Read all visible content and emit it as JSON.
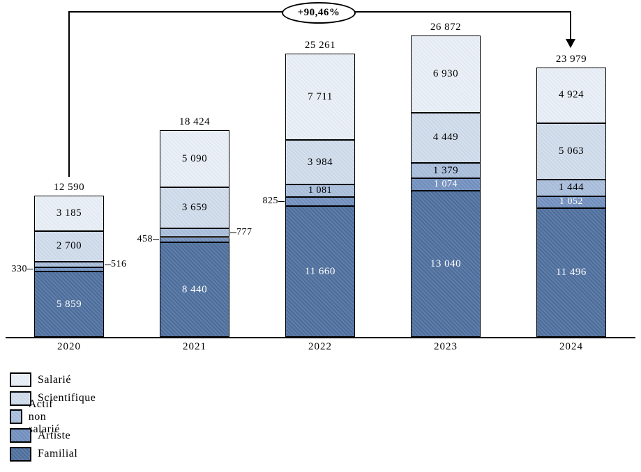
{
  "chart_data": {
    "type": "bar",
    "variant": "stacked-vertical",
    "title": "",
    "xlabel": "",
    "ylabel": "",
    "grid": false,
    "legend_position": "bottom-left",
    "annotation": "+90,46%",
    "annotation_meaning": "growth from 2020 total to 2024 total",
    "categories": [
      "2020",
      "2021",
      "2022",
      "2023",
      "2024"
    ],
    "totals": [
      12590,
      18424,
      25261,
      26872,
      23979
    ],
    "total_labels": [
      "12 590",
      "18 424",
      "25 261",
      "26 872",
      "23 979"
    ],
    "series": [
      {
        "name": "Familial",
        "color": "#4e6f9e",
        "text_color": "#ffffff",
        "values": [
          5859,
          8440,
          11660,
          13040,
          11496
        ],
        "labels": [
          "5 859",
          "8 440",
          "11 660",
          "13 040",
          "11 496"
        ],
        "outside_labels": []
      },
      {
        "name": "Artiste",
        "color": "#7290bf",
        "text_color": "#ffffff",
        "values": [
          330,
          458,
          825,
          1074,
          1052
        ],
        "labels": [
          "330",
          "458",
          "825",
          "1 074",
          "1 052"
        ],
        "outside_labels": [
          {
            "index": 0,
            "side": "left"
          },
          {
            "index": 1,
            "side": "left"
          },
          {
            "index": 2,
            "side": "left"
          }
        ]
      },
      {
        "name": "Actif non salarié",
        "color": "#a9bedc",
        "text_color": "#000000",
        "values": [
          516,
          777,
          1081,
          1379,
          1444
        ],
        "labels": [
          "516",
          "777",
          "1 081",
          "1 379",
          "1 444"
        ],
        "outside_labels": [
          {
            "index": 0,
            "side": "right"
          },
          {
            "index": 1,
            "side": "right"
          }
        ]
      },
      {
        "name": "Scientifique",
        "color": "#d0dcec",
        "text_color": "#000000",
        "values": [
          2700,
          3659,
          3984,
          4449,
          5063
        ],
        "labels": [
          "2 700",
          "3 659",
          "3 984",
          "4 449",
          "5 063"
        ],
        "outside_labels": []
      },
      {
        "name": "Salarié",
        "color": "#e9eff7",
        "text_color": "#000000",
        "values": [
          3185,
          5090,
          7711,
          6930,
          4924
        ],
        "labels": [
          "3 185",
          "5 090",
          "7 711",
          "6 930",
          "4 924"
        ],
        "outside_labels": []
      }
    ],
    "legend": [
      {
        "label": "Salarié",
        "color": "#e9eff7"
      },
      {
        "label": "Scientifique",
        "color": "#d0dcec"
      },
      {
        "label": "Actif non salarié",
        "color": "#a9bedc"
      },
      {
        "label": "Artiste",
        "color": "#7290bf"
      },
      {
        "label": "Familial",
        "color": "#4e6f9e"
      }
    ]
  }
}
